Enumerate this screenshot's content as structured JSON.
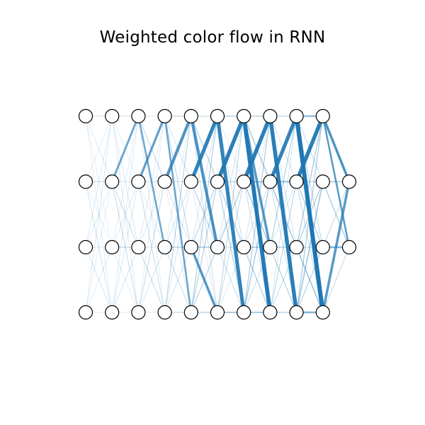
{
  "title": "Weighted color flow in RNN",
  "colors": {
    "edge": "#1f77b4",
    "node_fill": "#ffffff",
    "node_stroke": "#000000"
  },
  "layers": [
    {
      "rows": [
        0,
        1,
        2,
        3
      ]
    },
    {
      "rows": [
        0,
        1,
        2,
        3
      ]
    },
    {
      "rows": [
        0,
        1,
        2,
        3
      ]
    },
    {
      "rows": [
        0,
        1,
        2,
        3
      ]
    },
    {
      "rows": [
        0,
        1,
        2,
        3
      ]
    },
    {
      "rows": [
        0,
        1,
        2,
        3
      ]
    },
    {
      "rows": [
        0,
        1,
        2,
        3
      ]
    },
    {
      "rows": [
        0,
        1,
        2,
        3
      ]
    },
    {
      "rows": [
        0,
        1,
        2,
        3
      ]
    },
    {
      "rows": [
        0,
        1,
        2,
        3
      ]
    },
    {
      "rows": [
        1,
        2
      ]
    }
  ],
  "layer_weight": [
    0.9,
    1.0,
    1.1,
    1.3,
    1.45,
    1.6,
    1.8,
    2.0,
    2.3,
    2.6
  ],
  "strong_edges": [
    {
      "from_layer": 1,
      "from_row": 1,
      "to_row": 0,
      "w": 0.5
    },
    {
      "from_layer": 2,
      "from_row": 0,
      "to_row": 2,
      "w": 0.45
    },
    {
      "from_layer": 2,
      "from_row": 1,
      "to_row": 0,
      "w": 0.55
    },
    {
      "from_layer": 3,
      "from_row": 0,
      "to_row": 3,
      "w": 0.45
    },
    {
      "from_layer": 3,
      "from_row": 1,
      "to_row": 0,
      "w": 0.7
    },
    {
      "from_layer": 4,
      "from_row": 0,
      "to_row": 2,
      "w": 0.7
    },
    {
      "from_layer": 4,
      "from_row": 1,
      "to_row": 0,
      "w": 0.85
    },
    {
      "from_layer": 4,
      "from_row": 2,
      "to_row": 3,
      "w": 0.6
    },
    {
      "from_layer": 5,
      "from_row": 0,
      "to_row": 3,
      "w": 0.85
    },
    {
      "from_layer": 5,
      "from_row": 1,
      "to_row": 0,
      "w": 0.9
    },
    {
      "from_layer": 6,
      "from_row": 0,
      "to_row": 3,
      "w": 0.95
    },
    {
      "from_layer": 6,
      "from_row": 1,
      "to_row": 0,
      "w": 0.9
    },
    {
      "from_layer": 6,
      "from_row": 0,
      "to_row": 2,
      "w": 0.6
    },
    {
      "from_layer": 7,
      "from_row": 0,
      "to_row": 3,
      "w": 0.9
    },
    {
      "from_layer": 7,
      "from_row": 1,
      "to_row": 0,
      "w": 0.85
    },
    {
      "from_layer": 8,
      "from_row": 0,
      "to_row": 3,
      "w": 1.0
    },
    {
      "from_layer": 8,
      "from_row": 1,
      "to_row": 0,
      "w": 0.9
    },
    {
      "from_layer": 9,
      "from_row": 0,
      "to_row": 1,
      "w": 0.6
    },
    {
      "from_layer": 9,
      "from_row": 3,
      "to_row": 1,
      "w": 0.6
    },
    {
      "from_layer": 9,
      "from_row": 0,
      "to_row": 2,
      "w": 0.45
    }
  ]
}
